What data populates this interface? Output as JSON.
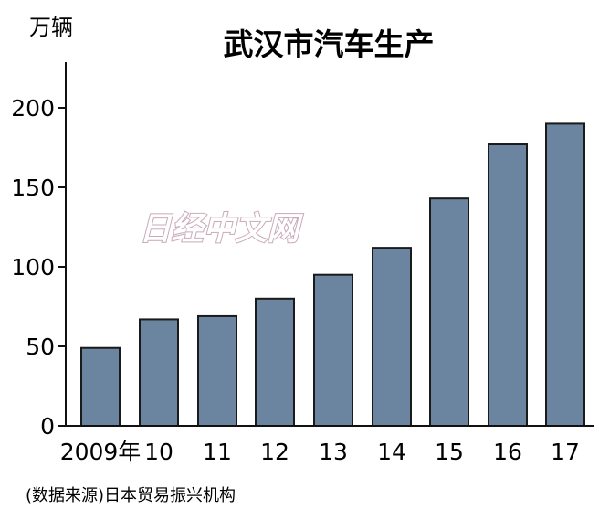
{
  "chart_data": {
    "type": "bar",
    "title": "武汉市汽车生产",
    "ylabel": "万辆",
    "categories": [
      "2009年",
      "10",
      "11",
      "12",
      "13",
      "14",
      "15",
      "16",
      "17"
    ],
    "values": [
      49,
      67,
      69,
      80,
      95,
      112,
      143,
      177,
      190
    ],
    "ylim": [
      0,
      200
    ],
    "yticks": [
      0,
      50,
      100,
      150,
      200
    ],
    "grid": false,
    "bar_color": "#6b84a0",
    "bar_edge_color": "#1a1a1a"
  },
  "source": "(数据来源)日本贸易振兴机构",
  "watermark": "日经中文网"
}
